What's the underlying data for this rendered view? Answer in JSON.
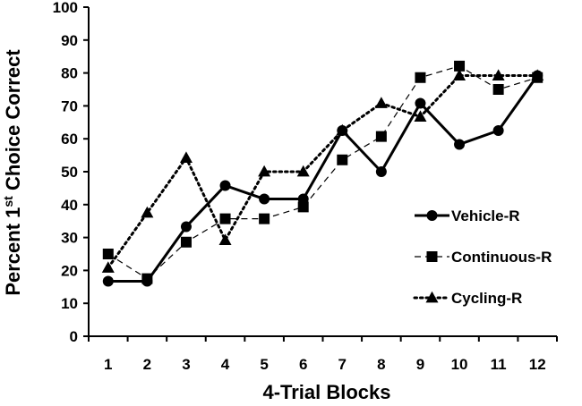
{
  "chart_data": {
    "type": "line",
    "title": "",
    "xlabel": "4-Trial Blocks",
    "ylabel": {
      "prefix": "Percent 1",
      "superscript": "st",
      "suffix": " Choice Correct"
    },
    "x": [
      1,
      2,
      3,
      4,
      5,
      6,
      7,
      8,
      9,
      10,
      11,
      12
    ],
    "x_tick_labels": [
      "1",
      "2",
      "3",
      "4",
      "5",
      "6",
      "7",
      "8",
      "9",
      "10",
      "11",
      "12"
    ],
    "ylim": [
      0,
      100
    ],
    "y_ticks": [
      0,
      10,
      20,
      30,
      40,
      50,
      60,
      70,
      80,
      90,
      100
    ],
    "y_tick_labels": [
      "0",
      "10",
      "20",
      "30",
      "40",
      "50",
      "60",
      "70",
      "80",
      "90",
      "100"
    ],
    "grid": false,
    "legend_position": "center-right",
    "series": [
      {
        "name": "Vehicle-R",
        "marker": "circle",
        "line_style": "solid",
        "values": [
          16.7,
          16.7,
          33.3,
          45.8,
          41.7,
          41.7,
          62.5,
          50.0,
          70.8,
          58.3,
          62.5,
          79.2
        ]
      },
      {
        "name": "Continuous-R",
        "marker": "square",
        "line_style": "dashed",
        "values": [
          25.0,
          17.5,
          28.6,
          35.7,
          35.7,
          39.3,
          53.6,
          60.7,
          78.6,
          82.1,
          75.0,
          78.6
        ]
      },
      {
        "name": "Cycling-R",
        "marker": "triangle",
        "line_style": "dotted",
        "values": [
          20.8,
          37.5,
          54.2,
          29.2,
          50.0,
          50.0,
          62.5,
          70.8,
          66.7,
          79.2,
          79.2,
          79.2
        ]
      }
    ],
    "colors": {
      "line": "#000000",
      "background": "#ffffff"
    }
  }
}
